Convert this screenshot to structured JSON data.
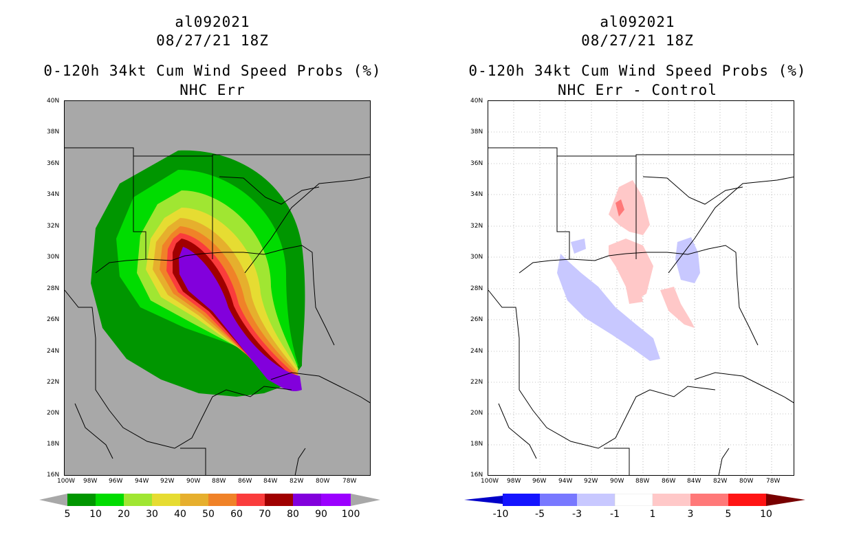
{
  "left": {
    "storm_id": "al092021",
    "datetime": "08/27/21 18Z",
    "product": "0-120h 34kt Cum Wind Speed Probs (%)",
    "subtitle": "NHC Err",
    "colorbar": {
      "labels": [
        "5",
        "10",
        "20",
        "30",
        "40",
        "50",
        "60",
        "70",
        "80",
        "90",
        "100"
      ],
      "colors": [
        "#009600",
        "#00dc00",
        "#a0e632",
        "#e6dc32",
        "#e6af2d",
        "#f08228",
        "#fa3c3c",
        "#a00000",
        "#8200dc",
        "#9b00ff"
      ]
    }
  },
  "right": {
    "storm_id": "al092021",
    "datetime": "08/27/21 18Z",
    "product": "0-120h 34kt Cum Wind Speed Probs (%)",
    "subtitle": "NHC Err - Control",
    "colorbar": {
      "labels": [
        "-10",
        "-5",
        "-3",
        "-1",
        "1",
        "3",
        "5",
        "10"
      ],
      "colors": [
        "#0000c8",
        "#1414ff",
        "#7878ff",
        "#c8c8ff",
        "#ffffff",
        "#ffc8c8",
        "#ff7878",
        "#ff1414",
        "#c80000",
        "#780000"
      ]
    }
  },
  "axes": {
    "lat_labels": [
      "40N",
      "38N",
      "36N",
      "34N",
      "32N",
      "30N",
      "28N",
      "26N",
      "24N",
      "22N",
      "20N",
      "18N",
      "16N"
    ],
    "lon_labels": [
      "100W",
      "98W",
      "96W",
      "94W",
      "92W",
      "90W",
      "88W",
      "86W",
      "84W",
      "82W",
      "80W",
      "78W"
    ]
  }
}
